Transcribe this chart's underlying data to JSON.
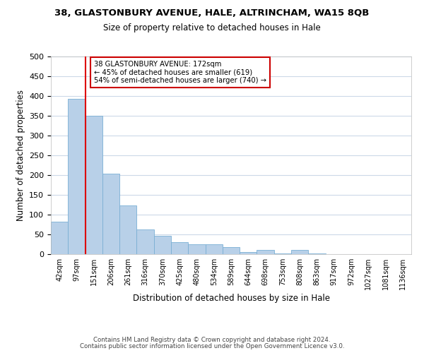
{
  "title": "38, GLASTONBURY AVENUE, HALE, ALTRINCHAM, WA15 8QB",
  "subtitle": "Size of property relative to detached houses in Hale",
  "xlabel": "Distribution of detached houses by size in Hale",
  "ylabel": "Number of detached properties",
  "bar_labels": [
    "42sqm",
    "97sqm",
    "151sqm",
    "206sqm",
    "261sqm",
    "316sqm",
    "370sqm",
    "425sqm",
    "480sqm",
    "534sqm",
    "589sqm",
    "644sqm",
    "698sqm",
    "753sqm",
    "808sqm",
    "863sqm",
    "917sqm",
    "972sqm",
    "1027sqm",
    "1081sqm",
    "1136sqm"
  ],
  "bar_values": [
    82,
    393,
    350,
    204,
    123,
    63,
    46,
    31,
    25,
    25,
    17,
    6,
    10,
    2,
    10,
    1,
    0,
    0,
    0,
    0,
    0
  ],
  "bar_color": "#b8d0e8",
  "bar_edge_color": "#7aafd4",
  "vline_color": "#dd0000",
  "ylim": [
    0,
    500
  ],
  "yticks": [
    0,
    50,
    100,
    150,
    200,
    250,
    300,
    350,
    400,
    450,
    500
  ],
  "annotation_title": "38 GLASTONBURY AVENUE: 172sqm",
  "annotation_line1": "← 45% of detached houses are smaller (619)",
  "annotation_line2": "54% of semi-detached houses are larger (740) →",
  "annotation_box_color": "#ffffff",
  "annotation_box_edge": "#cc0000",
  "footer1": "Contains HM Land Registry data © Crown copyright and database right 2024.",
  "footer2": "Contains public sector information licensed under the Open Government Licence v3.0.",
  "background_color": "#ffffff",
  "grid_color": "#ccd9e8"
}
